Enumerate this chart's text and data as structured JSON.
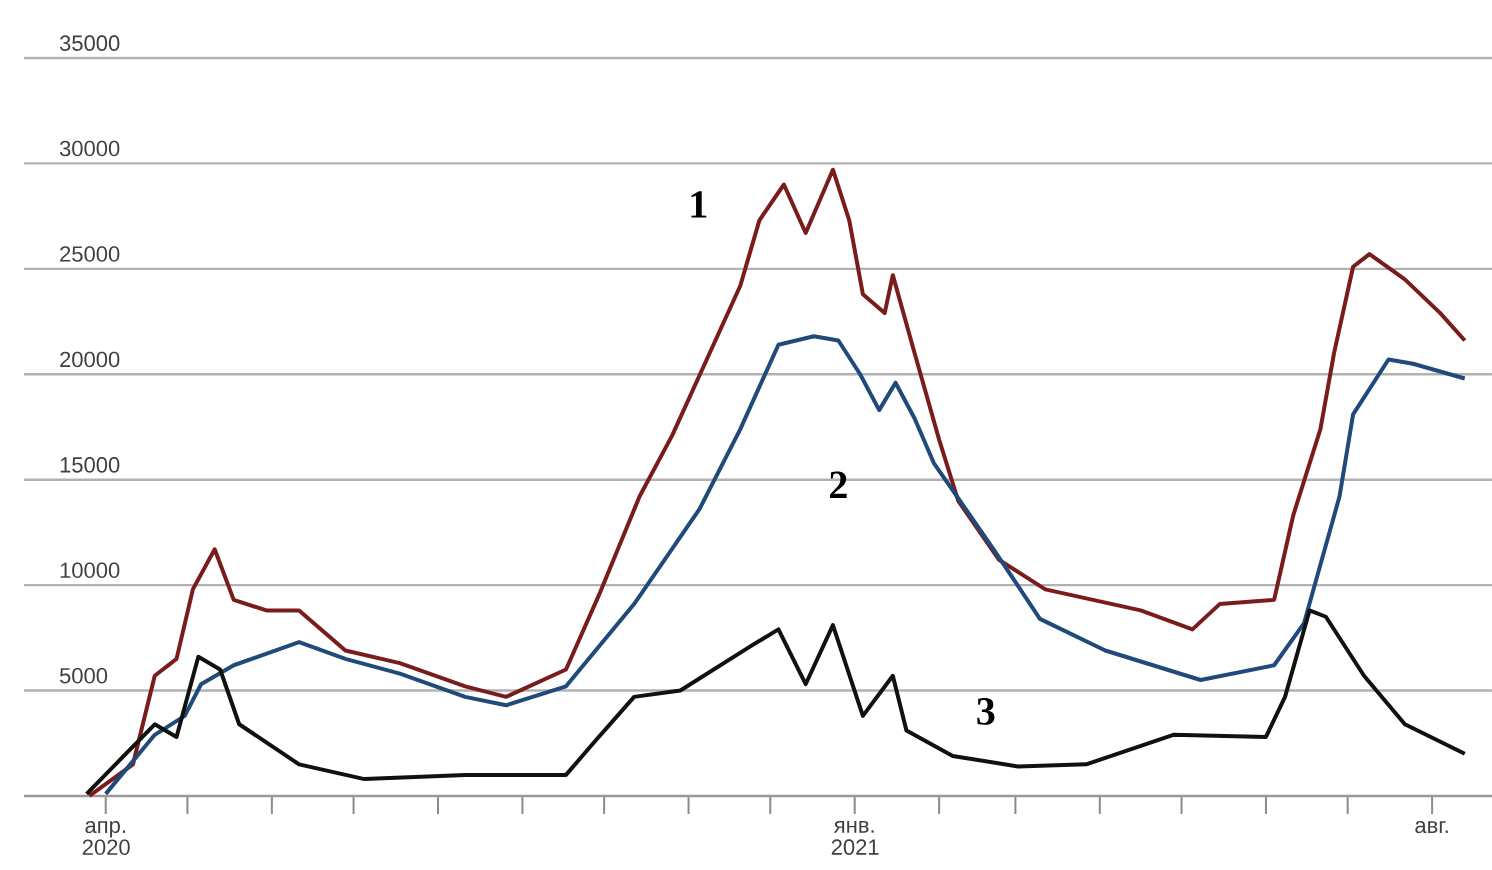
{
  "chart_data": {
    "type": "line",
    "xlim": [
      "2020-03-02",
      "2021-08-23"
    ],
    "ylim": [
      0,
      35000
    ],
    "yticks": [
      5000,
      10000,
      15000,
      20000,
      25000,
      30000,
      35000
    ],
    "xticks": [
      {
        "value": "2020-04-01",
        "label": "апр. 2020"
      },
      {
        "value": "2020-05-01",
        "label": null
      },
      {
        "value": "2020-06-01",
        "label": null
      },
      {
        "value": "2020-07-01",
        "label": null
      },
      {
        "value": "2020-08-01",
        "label": null
      },
      {
        "value": "2020-09-01",
        "label": null
      },
      {
        "value": "2020-10-01",
        "label": null
      },
      {
        "value": "2020-11-01",
        "label": null
      },
      {
        "value": "2020-12-01",
        "label": null
      },
      {
        "value": "2021-01-01",
        "label": "янв. 2021"
      },
      {
        "value": "2021-02-01",
        "label": null
      },
      {
        "value": "2021-03-01",
        "label": null
      },
      {
        "value": "2021-04-01",
        "label": null
      },
      {
        "value": "2021-05-01",
        "label": null
      },
      {
        "value": "2021-06-01",
        "label": null
      },
      {
        "value": "2021-07-01",
        "label": null
      },
      {
        "value": "2021-08-01",
        "label": "авг."
      }
    ],
    "grid": "y",
    "series": [
      {
        "name": "1",
        "color": "#7a1c1c",
        "x": [
          "2020-03-26",
          "2020-04-11",
          "2020-04-19",
          "2020-04-27",
          "2020-05-03",
          "2020-05-11",
          "2020-05-18",
          "2020-05-30",
          "2020-06-11",
          "2020-06-28",
          "2020-07-18",
          "2020-08-11",
          "2020-08-26",
          "2020-09-17",
          "2020-09-29",
          "2020-10-14",
          "2020-10-26",
          "2020-11-20",
          "2020-11-27",
          "2020-12-06",
          "2020-12-14",
          "2020-12-24",
          "2020-12-30",
          "2021-01-04",
          "2021-01-12",
          "2021-01-15",
          "2021-01-23",
          "2021-02-01",
          "2021-02-08",
          "2021-02-23",
          "2021-03-12",
          "2021-04-16",
          "2021-05-05",
          "2021-05-15",
          "2021-06-04",
          "2021-06-11",
          "2021-06-21",
          "2021-06-26",
          "2021-07-03",
          "2021-07-09",
          "2021-07-22",
          "2021-08-04",
          "2021-08-13"
        ],
        "values": [
          0,
          1500,
          5700,
          6500,
          9800,
          11700,
          9300,
          8800,
          8800,
          6900,
          6300,
          5200,
          4700,
          6000,
          9500,
          14200,
          17100,
          24200,
          27300,
          29000,
          26700,
          29700,
          27300,
          23800,
          22900,
          24700,
          21000,
          16900,
          14000,
          11200,
          9800,
          8800,
          7900,
          9100,
          9300,
          13300,
          17400,
          21000,
          25100,
          25700,
          24500,
          22900,
          21600
        ]
      },
      {
        "name": "2",
        "color": "#1f4a7a",
        "x": [
          "2020-04-01",
          "2020-04-19",
          "2020-04-30",
          "2020-05-06",
          "2020-05-18",
          "2020-06-11",
          "2020-06-28",
          "2020-07-18",
          "2020-08-11",
          "2020-08-26",
          "2020-09-17",
          "2020-10-12",
          "2020-11-05",
          "2020-11-20",
          "2020-12-04",
          "2020-12-17",
          "2020-12-26",
          "2021-01-03",
          "2021-01-10",
          "2021-01-16",
          "2021-01-23",
          "2021-01-30",
          "2021-02-21",
          "2021-03-10",
          "2021-04-03",
          "2021-05-08",
          "2021-06-04",
          "2021-06-15",
          "2021-06-28",
          "2021-07-03",
          "2021-07-16",
          "2021-07-25",
          "2021-08-13"
        ],
        "values": [
          100,
          2900,
          3800,
          5300,
          6200,
          7300,
          6500,
          5800,
          4700,
          4300,
          5200,
          9100,
          13600,
          17400,
          21400,
          21800,
          21600,
          20000,
          18300,
          19600,
          17900,
          15800,
          11700,
          8400,
          6900,
          5500,
          6200,
          8200,
          14200,
          18100,
          20700,
          20500,
          19800
        ]
      },
      {
        "name": "3",
        "color": "#111111",
        "x": [
          "2020-03-25",
          "2020-04-19",
          "2020-04-27",
          "2020-05-05",
          "2020-05-13",
          "2020-05-20",
          "2020-06-11",
          "2020-07-05",
          "2020-08-11",
          "2020-09-17",
          "2020-09-27",
          "2020-10-12",
          "2020-10-29",
          "2020-11-25",
          "2020-12-04",
          "2020-12-14",
          "2020-12-24",
          "2021-01-04",
          "2021-01-15",
          "2021-01-20",
          "2021-02-06",
          "2021-03-02",
          "2021-03-27",
          "2021-04-28",
          "2021-06-01",
          "2021-06-08",
          "2021-06-17",
          "2021-06-23",
          "2021-07-07",
          "2021-07-22",
          "2021-08-13"
        ],
        "values": [
          100,
          3400,
          2800,
          6600,
          6000,
          3400,
          1500,
          800,
          1000,
          1000,
          2500,
          4700,
          5000,
          7200,
          7900,
          5300,
          8100,
          3800,
          5700,
          3100,
          1900,
          1400,
          1500,
          2900,
          2800,
          4700,
          8800,
          8500,
          5700,
          3400,
          2000
        ]
      }
    ]
  }
}
